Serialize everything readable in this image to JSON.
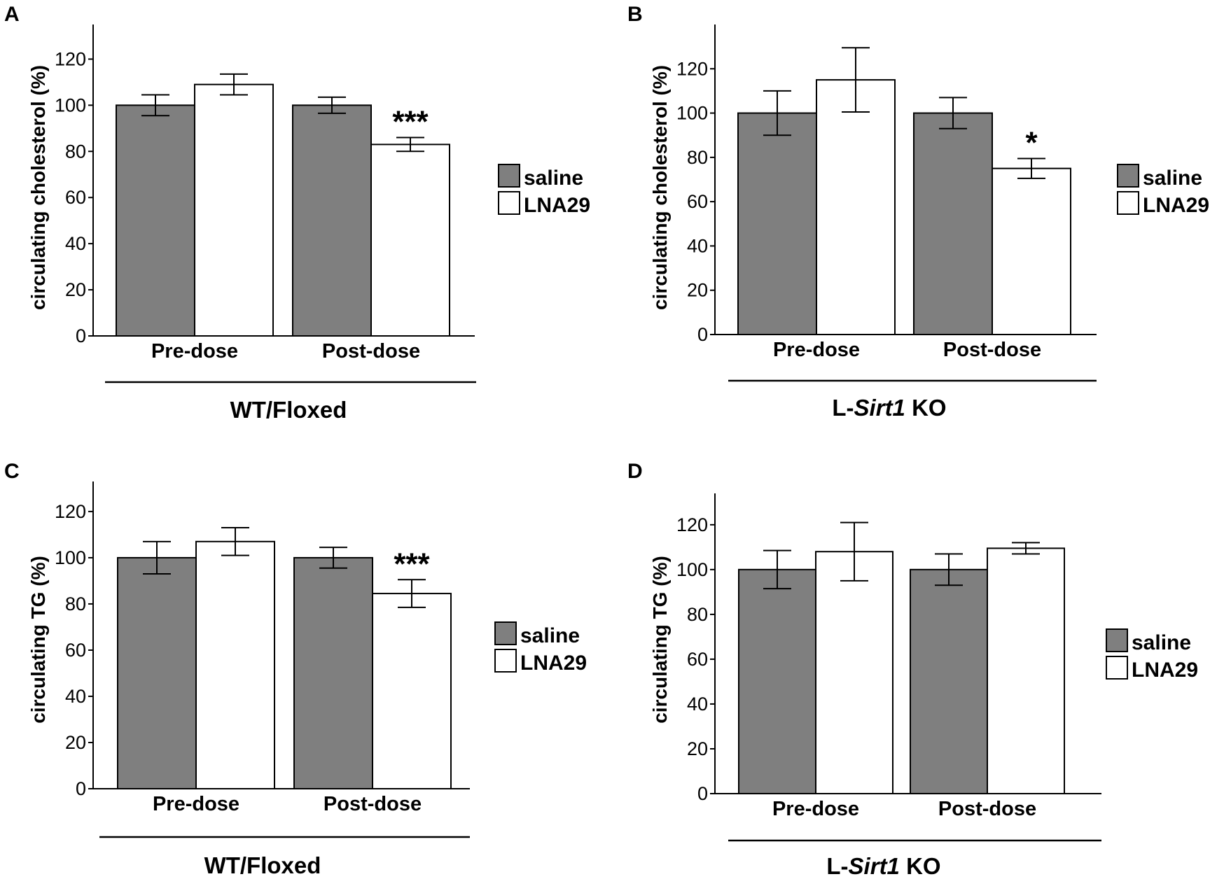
{
  "colors": {
    "saline": "#7f7f7f",
    "LNA29": "#ffffff",
    "axis": "#000000"
  },
  "chart_data": [
    {
      "panel": "A",
      "type": "bar",
      "ylabel": "circulating cholesterol (%)",
      "categories": [
        "Pre-dose",
        "Post-dose"
      ],
      "group_prefix": "WT/Floxed",
      "group_italic": "",
      "group_suffix": "",
      "ylim": [
        0,
        135
      ],
      "yticks": [
        0,
        20,
        40,
        60,
        80,
        100,
        120
      ],
      "series": [
        {
          "name": "saline",
          "values": [
            100,
            100
          ],
          "errors": [
            4.5,
            3.5
          ]
        },
        {
          "name": "LNA29",
          "values": [
            109,
            83
          ],
          "errors": [
            4.5,
            3
          ]
        }
      ],
      "annotations": [
        {
          "category": "Post-dose",
          "series": "LNA29",
          "text": "***"
        }
      ],
      "legend": [
        "saline",
        "LNA29"
      ]
    },
    {
      "panel": "B",
      "type": "bar",
      "ylabel": "circulating cholesterol (%)",
      "categories": [
        "Pre-dose",
        "Post-dose"
      ],
      "group_prefix": "L-",
      "group_italic": "Sirt1",
      "group_suffix": " KO",
      "ylim": [
        0,
        140
      ],
      "yticks": [
        0,
        20,
        40,
        60,
        80,
        100,
        120
      ],
      "series": [
        {
          "name": "saline",
          "values": [
            100,
            100
          ],
          "errors": [
            10,
            7
          ]
        },
        {
          "name": "LNA29",
          "values": [
            115,
            75
          ],
          "errors": [
            14.5,
            4.5
          ]
        }
      ],
      "annotations": [
        {
          "category": "Post-dose",
          "series": "LNA29",
          "text": "*"
        }
      ],
      "legend": [
        "saline",
        "LNA29"
      ]
    },
    {
      "panel": "C",
      "type": "bar",
      "ylabel": "circulating TG (%)",
      "categories": [
        "Pre-dose",
        "Post-dose"
      ],
      "group_prefix": "WT/Floxed",
      "group_italic": "",
      "group_suffix": "",
      "ylim": [
        0,
        133
      ],
      "yticks": [
        0,
        20,
        40,
        60,
        80,
        100,
        120
      ],
      "series": [
        {
          "name": "saline",
          "values": [
            100,
            100
          ],
          "errors": [
            7,
            4.5
          ]
        },
        {
          "name": "LNA29",
          "values": [
            107,
            84.5
          ],
          "errors": [
            6,
            6
          ]
        }
      ],
      "annotations": [
        {
          "category": "Post-dose",
          "series": "LNA29",
          "text": "***"
        }
      ],
      "legend": [
        "saline",
        "LNA29"
      ]
    },
    {
      "panel": "D",
      "type": "bar",
      "ylabel": "circulating TG (%)",
      "categories": [
        "Pre-dose",
        "Post-dose"
      ],
      "group_prefix": "L-",
      "group_italic": "Sirt1",
      "group_suffix": " KO",
      "ylim": [
        0,
        134
      ],
      "yticks": [
        0,
        20,
        40,
        60,
        80,
        100,
        120
      ],
      "series": [
        {
          "name": "saline",
          "values": [
            100,
            100
          ],
          "errors": [
            8.5,
            7
          ]
        },
        {
          "name": "LNA29",
          "values": [
            108,
            109.5
          ],
          "errors": [
            13,
            2.5
          ]
        }
      ],
      "annotations": [],
      "legend": [
        "saline",
        "LNA29"
      ]
    }
  ]
}
